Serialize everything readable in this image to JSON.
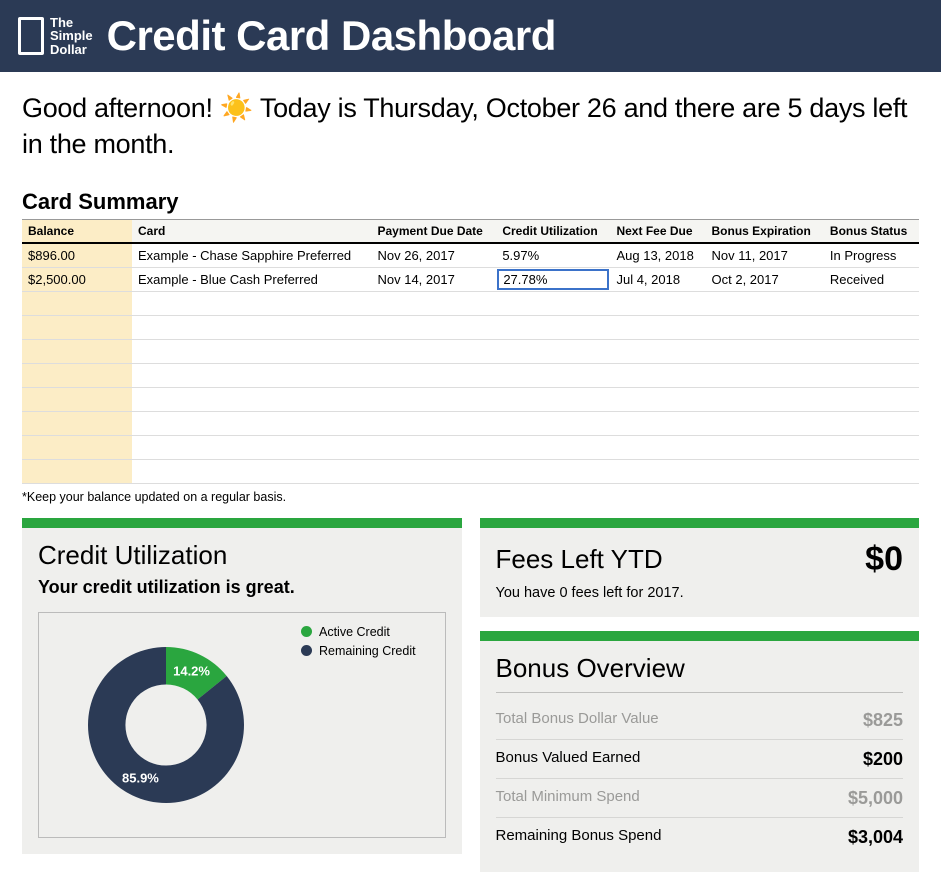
{
  "header": {
    "brand_line1": "The",
    "brand_line2": "Simple",
    "brand_line3": "Dollar",
    "title": "Credit Card Dashboard",
    "bg_color": "#2b3a55",
    "text_color": "#ffffff"
  },
  "greeting": {
    "text": "Good afternoon! ☀️ Today is Thursday, October 26 and there are 5 days left in the month."
  },
  "card_summary": {
    "title": "Card Summary",
    "columns": [
      "Balance",
      "Card",
      "Payment Due Date",
      "Credit Utilization",
      "Next Fee Due",
      "Bonus Expiration",
      "Bonus Status"
    ],
    "rows": [
      {
        "balance": "$896.00",
        "card": "Example - Chase Sapphire Preferred",
        "due": "Nov 26, 2017",
        "util": "5.97%",
        "fee": "Aug 13, 2018",
        "bonus_exp": "Nov 11, 2017",
        "bonus_status": "In Progress"
      },
      {
        "balance": "$2,500.00",
        "card": "Example - Blue Cash Preferred",
        "due": "Nov 14, 2017",
        "util": "27.78%",
        "fee": "Jul 4, 2018",
        "bonus_exp": "Oct 2, 2017",
        "bonus_status": "Received"
      }
    ],
    "empty_rows": 8,
    "selected": {
      "row": 1,
      "col": "util"
    },
    "footnote": "*Keep your balance updated on a regular basis.",
    "balance_col_bg": "#fcedc6",
    "border_color": "#dddddd",
    "selected_border": "#3b72c9"
  },
  "credit_utilization": {
    "title": "Credit Utilization",
    "subtitle": "Your credit utilization is great.",
    "chart": {
      "type": "donut",
      "slices": [
        {
          "label": "Active Credit",
          "value": 14.2,
          "color": "#2aa63f",
          "display": "14.2%"
        },
        {
          "label": "Remaining Credit",
          "value": 85.9,
          "color": "#2b3a55",
          "display": "85.9%"
        }
      ],
      "background_color": "#efefed",
      "inner_radius_ratio": 0.52,
      "label_color": "#ffffff",
      "label_fontsize": 13,
      "legend_fontsize": 12.5
    }
  },
  "fees": {
    "title": "Fees Left YTD",
    "amount": "$0",
    "subtext": "You have 0 fees left for 2017."
  },
  "bonus_overview": {
    "title": "Bonus Overview",
    "rows": [
      {
        "label": "Total Bonus Dollar Value",
        "value": "$825",
        "muted": true
      },
      {
        "label": "Bonus Valued Earned",
        "value": "$200",
        "muted": false
      },
      {
        "label": "Total Minimum Spend",
        "value": "$5,000",
        "muted": true
      },
      {
        "label": "Remaining Bonus Spend",
        "value": "$3,004",
        "muted": false
      }
    ]
  },
  "panel_style": {
    "accent_color": "#2aa63f",
    "panel_bg": "#efefed"
  }
}
